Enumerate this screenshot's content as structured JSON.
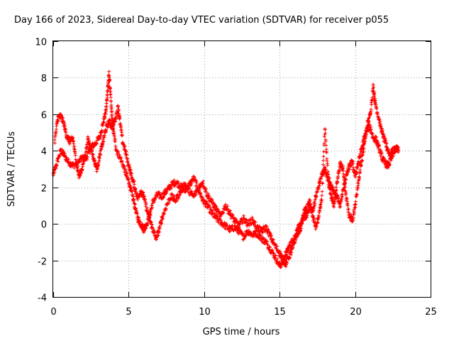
{
  "chart_data": {
    "type": "scatter",
    "title": "Day 166 of 2023, Sidereal Day-to-day VTEC variation (SDTVAR) for receiver p055",
    "xlabel": "GPS time / hours",
    "ylabel": "SDTVAR / TECUs",
    "xlim": [
      0,
      25
    ],
    "ylim": [
      -4,
      10
    ],
    "x_ticks": [
      0,
      5,
      10,
      15,
      20,
      25
    ],
    "y_ticks": [
      -4,
      -2,
      0,
      2,
      4,
      6,
      8,
      10
    ],
    "x_tick_labels": [
      "0",
      "5",
      "10",
      "15",
      "20",
      "25"
    ],
    "y_tick_labels": [
      "-4",
      "-2",
      "0",
      "2",
      "4",
      "6",
      "8",
      "10"
    ],
    "grid": true,
    "marker": "plus",
    "series": [
      {
        "name": "p055 SDTVAR",
        "color": "#ff0000",
        "tracks": [
          [
            [
              0.0,
              2.7
            ],
            [
              0.2,
              3.2
            ],
            [
              0.5,
              4.0
            ],
            [
              0.7,
              3.8
            ],
            [
              1.0,
              3.4
            ],
            [
              1.3,
              3.2
            ],
            [
              1.6,
              3.3
            ],
            [
              1.9,
              3.6
            ],
            [
              2.2,
              3.6
            ],
            [
              2.5,
              4.2
            ],
            [
              2.8,
              4.4
            ],
            [
              3.1,
              4.8
            ],
            [
              3.3,
              5.5
            ],
            [
              3.5,
              6.2
            ],
            [
              3.6,
              7.3
            ],
            [
              3.7,
              8.2
            ],
            [
              3.8,
              7.0
            ],
            [
              3.9,
              5.8
            ],
            [
              4.0,
              5.0
            ],
            [
              4.2,
              4.0
            ],
            [
              4.5,
              3.5
            ],
            [
              4.8,
              2.8
            ],
            [
              5.0,
              2.3
            ],
            [
              5.2,
              1.7
            ],
            [
              5.4,
              1.0
            ],
            [
              5.6,
              0.3
            ],
            [
              5.8,
              0.0
            ],
            [
              6.0,
              -0.3
            ],
            [
              6.2,
              0.0
            ],
            [
              6.4,
              0.5
            ],
            [
              6.6,
              1.2
            ],
            [
              6.9,
              1.6
            ],
            [
              7.2,
              1.5
            ],
            [
              7.5,
              1.8
            ],
            [
              7.8,
              2.1
            ],
            [
              8.1,
              2.3
            ],
            [
              8.4,
              2.1
            ],
            [
              8.7,
              1.8
            ],
            [
              9.0,
              2.1
            ],
            [
              9.3,
              2.5
            ],
            [
              9.6,
              2.0
            ],
            [
              9.9,
              1.3
            ],
            [
              10.2,
              1.0
            ],
            [
              10.5,
              0.6
            ],
            [
              10.8,
              0.3
            ],
            [
              11.1,
              0.1
            ],
            [
              11.4,
              -0.1
            ],
            [
              11.7,
              -0.3
            ],
            [
              12.0,
              -0.2
            ],
            [
              12.3,
              -0.4
            ],
            [
              12.6,
              -0.7
            ],
            [
              12.9,
              -0.4
            ],
            [
              13.2,
              -0.6
            ],
            [
              13.5,
              -0.5
            ],
            [
              13.8,
              -0.8
            ],
            [
              14.1,
              -1.0
            ],
            [
              14.4,
              -1.4
            ],
            [
              14.7,
              -1.8
            ],
            [
              15.0,
              -2.3
            ],
            [
              15.2,
              -2.1
            ],
            [
              15.4,
              -1.7
            ],
            [
              15.6,
              -1.3
            ],
            [
              15.8,
              -1.0
            ],
            [
              16.0,
              -0.7
            ],
            [
              16.2,
              -0.3
            ],
            [
              16.4,
              0.0
            ],
            [
              16.6,
              0.3
            ],
            [
              16.8,
              0.5
            ],
            [
              17.0,
              0.9
            ],
            [
              17.2,
              0.7
            ],
            [
              17.4,
              1.5
            ],
            [
              17.6,
              2.1
            ],
            [
              17.8,
              2.7
            ],
            [
              18.0,
              3.0
            ],
            [
              18.2,
              2.4
            ],
            [
              18.4,
              1.6
            ],
            [
              18.6,
              1.0
            ],
            [
              18.8,
              2.2
            ],
            [
              19.0,
              3.3
            ],
            [
              19.2,
              3.0
            ],
            [
              19.4,
              1.5
            ],
            [
              19.6,
              0.5
            ],
            [
              19.8,
              0.2
            ],
            [
              20.0,
              1.0
            ],
            [
              20.2,
              2.2
            ],
            [
              20.4,
              3.3
            ],
            [
              20.6,
              4.3
            ],
            [
              20.8,
              5.4
            ],
            [
              21.0,
              6.0
            ],
            [
              21.2,
              7.5
            ],
            [
              21.3,
              6.8
            ],
            [
              21.5,
              6.0
            ],
            [
              21.7,
              5.3
            ],
            [
              21.9,
              4.7
            ],
            [
              22.1,
              4.2
            ],
            [
              22.3,
              3.8
            ],
            [
              22.5,
              4.0
            ],
            [
              22.7,
              4.1
            ],
            [
              22.9,
              4.1
            ]
          ],
          [
            [
              0.1,
              4.5
            ],
            [
              0.3,
              5.8
            ],
            [
              0.5,
              5.9
            ],
            [
              0.7,
              5.5
            ],
            [
              0.9,
              4.8
            ],
            [
              1.1,
              4.5
            ],
            [
              1.3,
              4.7
            ],
            [
              1.5,
              3.5
            ],
            [
              1.7,
              2.6
            ],
            [
              1.9,
              3.0
            ],
            [
              2.1,
              3.7
            ],
            [
              2.3,
              4.6
            ],
            [
              2.5,
              4.2
            ],
            [
              2.7,
              3.5
            ],
            [
              2.9,
              3.0
            ],
            [
              3.1,
              3.8
            ],
            [
              3.3,
              4.5
            ],
            [
              3.5,
              5.2
            ],
            [
              3.7,
              5.6
            ],
            [
              3.9,
              5.3
            ],
            [
              4.1,
              5.7
            ],
            [
              4.3,
              6.4
            ],
            [
              4.4,
              5.7
            ],
            [
              4.6,
              4.5
            ],
            [
              4.8,
              3.9
            ],
            [
              5.0,
              3.2
            ],
            [
              5.2,
              2.6
            ],
            [
              5.4,
              2.0
            ],
            [
              5.6,
              1.4
            ],
            [
              5.8,
              1.8
            ],
            [
              6.0,
              1.5
            ],
            [
              6.2,
              0.8
            ],
            [
              6.4,
              0.2
            ],
            [
              6.6,
              -0.3
            ],
            [
              6.8,
              -0.8
            ],
            [
              7.0,
              -0.4
            ],
            [
              7.2,
              0.3
            ],
            [
              7.5,
              1.0
            ],
            [
              7.8,
              1.5
            ],
            [
              8.1,
              1.3
            ],
            [
              8.4,
              1.7
            ],
            [
              8.7,
              2.2
            ],
            [
              9.0,
              1.8
            ],
            [
              9.3,
              1.5
            ],
            [
              9.6,
              1.9
            ],
            [
              9.9,
              2.3
            ],
            [
              10.2,
              1.6
            ],
            [
              10.5,
              1.2
            ],
            [
              10.8,
              0.8
            ],
            [
              11.1,
              0.4
            ],
            [
              11.4,
              1.0
            ],
            [
              11.7,
              0.6
            ],
            [
              12.0,
              0.2
            ],
            [
              12.3,
              -0.1
            ],
            [
              12.6,
              0.3
            ],
            [
              12.9,
              0.0
            ],
            [
              13.2,
              0.2
            ],
            [
              13.5,
              -0.2
            ],
            [
              13.8,
              -0.4
            ],
            [
              14.1,
              -0.2
            ],
            [
              14.4,
              -0.7
            ],
            [
              14.7,
              -1.2
            ],
            [
              15.0,
              -1.6
            ],
            [
              15.2,
              -1.9
            ],
            [
              15.4,
              -2.2
            ],
            [
              15.6,
              -1.8
            ],
            [
              15.8,
              -1.5
            ],
            [
              16.0,
              -0.9
            ],
            [
              16.2,
              -0.5
            ],
            [
              16.4,
              -0.2
            ],
            [
              16.6,
              0.6
            ],
            [
              16.8,
              0.9
            ],
            [
              17.0,
              1.2
            ],
            [
              17.2,
              0.4
            ],
            [
              17.4,
              -0.2
            ],
            [
              17.6,
              0.4
            ],
            [
              17.8,
              1.5
            ],
            [
              18.0,
              5.2
            ],
            [
              18.2,
              2.7
            ],
            [
              18.4,
              2.0
            ],
            [
              18.6,
              1.8
            ],
            [
              18.8,
              1.5
            ],
            [
              19.0,
              1.0
            ],
            [
              19.2,
              1.8
            ],
            [
              19.4,
              2.6
            ],
            [
              19.6,
              3.1
            ],
            [
              19.8,
              3.4
            ],
            [
              20.0,
              2.6
            ],
            [
              20.2,
              3.3
            ],
            [
              20.4,
              4.0
            ],
            [
              20.6,
              4.7
            ],
            [
              20.8,
              5.2
            ],
            [
              21.0,
              5.3
            ],
            [
              21.2,
              4.7
            ],
            [
              21.4,
              4.6
            ],
            [
              21.6,
              4.1
            ],
            [
              21.8,
              3.6
            ],
            [
              22.0,
              3.3
            ],
            [
              22.2,
              3.2
            ],
            [
              22.4,
              3.6
            ],
            [
              22.6,
              4.0
            ],
            [
              22.8,
              4.2
            ]
          ]
        ]
      }
    ]
  }
}
